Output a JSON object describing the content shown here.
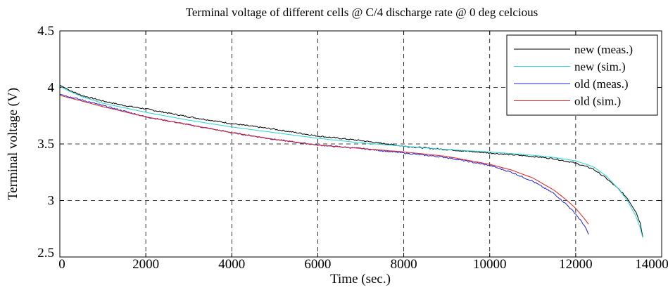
{
  "chart_data": {
    "type": "line",
    "title": "Terminal voltage of different cells @ C/4 discharge rate @ 0 deg celcious",
    "xlabel": "Time (sec.)",
    "ylabel": "Terminal voltage (V)",
    "xlim": [
      0,
      14000
    ],
    "ylim": [
      2.5,
      4.5
    ],
    "xticks": [
      0,
      2000,
      4000,
      6000,
      8000,
      10000,
      12000,
      14000
    ],
    "yticks": [
      2.5,
      3,
      3.5,
      4,
      4.5
    ],
    "xtick_labels": [
      "0",
      "2000",
      "4000",
      "6000",
      "8000",
      "10000",
      "12000",
      "14000"
    ],
    "ytick_labels": [
      "2.5",
      "3",
      "3.5",
      "4",
      "4.5"
    ],
    "grid": true,
    "legend_position": "top-right",
    "series": [
      {
        "name": "new (meas.)",
        "color": "#000000",
        "noisy": true,
        "x": [
          0,
          200,
          500,
          1000,
          1500,
          2000,
          3000,
          4000,
          5000,
          6000,
          7000,
          8000,
          9000,
          10000,
          11000,
          11500,
          12000,
          12400,
          12700,
          13000,
          13200,
          13400,
          13500,
          13560
        ],
        "y": [
          4.02,
          3.98,
          3.93,
          3.88,
          3.84,
          3.81,
          3.74,
          3.68,
          3.63,
          3.57,
          3.53,
          3.48,
          3.45,
          3.42,
          3.39,
          3.37,
          3.33,
          3.28,
          3.2,
          3.1,
          3.02,
          2.9,
          2.8,
          2.68
        ]
      },
      {
        "name": "new (sim.)",
        "color": "#22d6d6",
        "noisy": false,
        "x": [
          0,
          200,
          500,
          1000,
          1500,
          2000,
          3000,
          4000,
          5000,
          6000,
          7000,
          8000,
          9000,
          10000,
          11000,
          11500,
          12000,
          12400,
          12700,
          13000,
          13200,
          13400,
          13500,
          13560
        ],
        "y": [
          4.01,
          3.97,
          3.92,
          3.86,
          3.82,
          3.78,
          3.71,
          3.65,
          3.6,
          3.55,
          3.51,
          3.48,
          3.45,
          3.43,
          3.4,
          3.38,
          3.35,
          3.3,
          3.22,
          3.1,
          3.0,
          2.86,
          2.76,
          2.67
        ]
      },
      {
        "name": "old (meas.)",
        "color": "#1f1fd8",
        "noisy": true,
        "x": [
          0,
          500,
          1000,
          2000,
          3000,
          4000,
          5000,
          6000,
          7000,
          8000,
          9000,
          10000,
          10500,
          11000,
          11500,
          11800,
          12000,
          12200,
          12300
        ],
        "y": [
          3.94,
          3.89,
          3.84,
          3.74,
          3.67,
          3.6,
          3.54,
          3.49,
          3.46,
          3.42,
          3.38,
          3.31,
          3.25,
          3.17,
          3.06,
          2.96,
          2.88,
          2.78,
          2.7
        ]
      },
      {
        "name": "old (sim.)",
        "color": "#e01f1f",
        "noisy": false,
        "x": [
          0,
          500,
          1000,
          2000,
          3000,
          4000,
          5000,
          6000,
          7000,
          8000,
          9000,
          10000,
          10500,
          11000,
          11500,
          11800,
          12000,
          12200,
          12300
        ],
        "y": [
          3.93,
          3.88,
          3.83,
          3.74,
          3.67,
          3.6,
          3.54,
          3.49,
          3.46,
          3.43,
          3.39,
          3.32,
          3.27,
          3.2,
          3.09,
          3.0,
          2.93,
          2.84,
          2.79
        ]
      }
    ]
  }
}
